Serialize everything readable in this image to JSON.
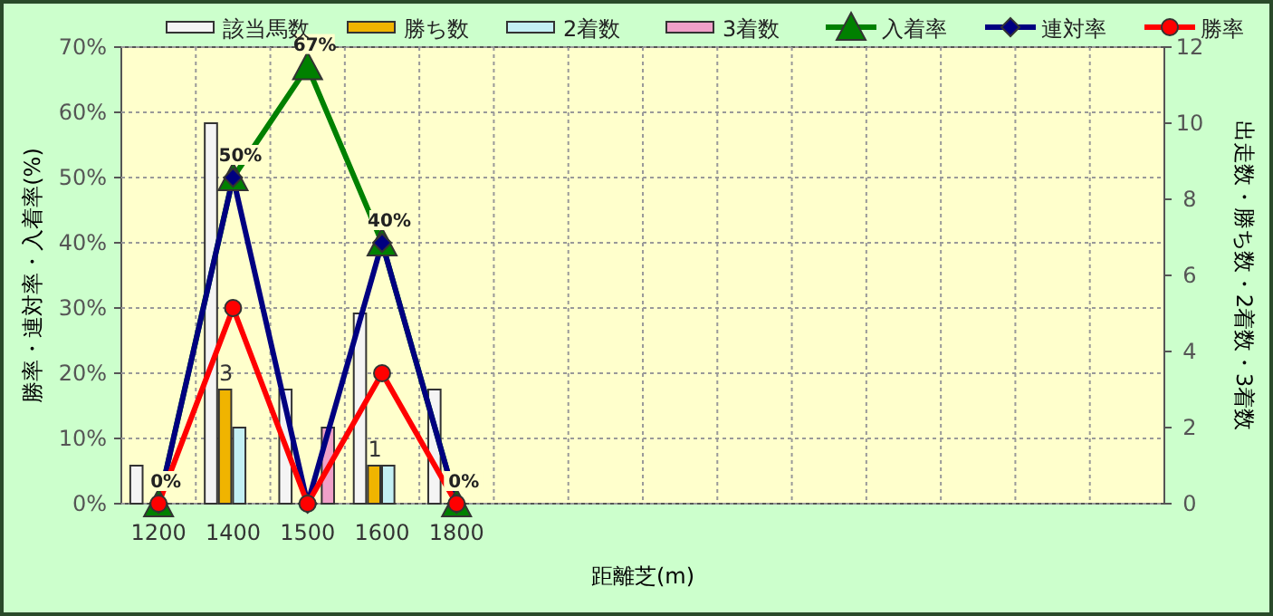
{
  "chart_data": {
    "type": "bar",
    "categories": [
      "1200",
      "1400",
      "1500",
      "1600",
      "1800",
      null,
      null,
      null,
      null,
      null,
      null,
      null,
      null,
      null
    ],
    "xlabel": "距離芝(m)",
    "ylabel": "勝率・連対率・入着率(%)",
    "y2label": "出走数・勝ち数・2着数・3着数",
    "ylim": [
      0,
      70
    ],
    "yticks": [
      {
        "value": 0,
        "label": "0%"
      },
      {
        "value": 10,
        "label": "10%"
      },
      {
        "value": 20,
        "label": "20%"
      },
      {
        "value": 30,
        "label": "30%"
      },
      {
        "value": 40,
        "label": "40%"
      },
      {
        "value": 50,
        "label": "50%"
      },
      {
        "value": 60,
        "label": "60%"
      },
      {
        "value": 70,
        "label": "70%"
      }
    ],
    "y2lim": [
      0,
      12
    ],
    "y2ticks": [
      0,
      2,
      4,
      6,
      8,
      10,
      12
    ],
    "grid": true,
    "legend": "top",
    "series": [
      {
        "name": "該当馬数",
        "axis": "y2",
        "color": "#f4f4f4",
        "values": [
          1,
          10,
          3,
          5,
          3,
          null,
          null,
          null,
          null,
          null,
          null,
          null,
          null,
          null
        ]
      },
      {
        "name": "勝ち数",
        "axis": "y2",
        "color": "#f0b400",
        "values": [
          0,
          3,
          0,
          1,
          0,
          null,
          null,
          null,
          null,
          null,
          null,
          null,
          null,
          null
        ],
        "value_labels": [
          null,
          "3",
          null,
          "1",
          null,
          null,
          null,
          null,
          null,
          null,
          null,
          null,
          null,
          null
        ]
      },
      {
        "name": "2着数",
        "axis": "y2",
        "color": "#c4f0f4",
        "values": [
          0,
          2,
          0,
          1,
          0,
          null,
          null,
          null,
          null,
          null,
          null,
          null,
          null,
          null
        ]
      },
      {
        "name": "3着数",
        "axis": "y2",
        "color": "#f0a0c8",
        "values": [
          0,
          0,
          2,
          0,
          0,
          null,
          null,
          null,
          null,
          null,
          null,
          null,
          null,
          null
        ]
      },
      {
        "name": "入着率",
        "type": "line",
        "color": "#008000",
        "marker": "triangle",
        "values": [
          0,
          50,
          67,
          40,
          0,
          null,
          null,
          null,
          null,
          null,
          null,
          null,
          null,
          null
        ],
        "value_labels": [
          "0%",
          "50%",
          "67%",
          "40%",
          "0%",
          null,
          null,
          null,
          null,
          null,
          null,
          null,
          null,
          null
        ]
      },
      {
        "name": "連対率",
        "type": "line",
        "color": "#000080",
        "marker": "diamond",
        "values": [
          0,
          50,
          0,
          40,
          0,
          null,
          null,
          null,
          null,
          null,
          null,
          null,
          null,
          null
        ]
      },
      {
        "name": "勝率",
        "type": "line",
        "color": "#ff0000",
        "marker": "circle",
        "values": [
          0,
          30,
          0,
          20,
          0,
          null,
          null,
          null,
          null,
          null,
          null,
          null,
          null,
          null
        ]
      }
    ]
  }
}
